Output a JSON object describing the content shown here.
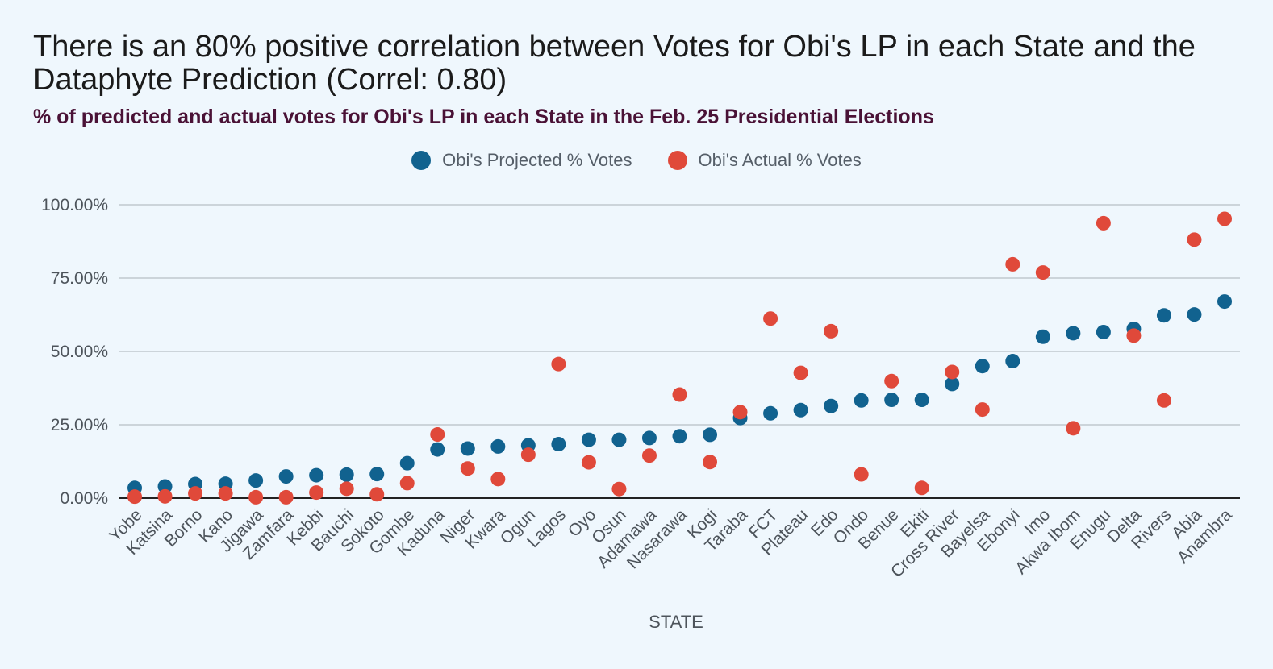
{
  "header": {
    "title": "There is an 80% positive correlation between Votes for Obi's LP in each State and the Dataphyte Prediction (Correl: 0.80)",
    "subtitle": "% of predicted and actual votes for Obi's LP in each State in the Feb. 25 Presidential Elections"
  },
  "colors": {
    "background": "#eff7fd",
    "projected": "#11628f",
    "actual": "#e0493a",
    "gridline": "#b8bfc6",
    "baseline": "#222222"
  },
  "chart_data": {
    "type": "scatter",
    "title": "There is an 80% positive correlation between Votes for Obi's LP in each State and the Dataphyte Prediction (Correl: 0.80)",
    "subtitle": "% of predicted and actual votes for Obi's LP in each State in the Feb. 25 Presidential Elections",
    "xlabel": "STATE",
    "ylabel": "",
    "ylim": [
      0,
      100
    ],
    "yticks": [
      "0.00%",
      "25.00%",
      "50.00%",
      "75.00%",
      "100.00%"
    ],
    "grid": true,
    "legend_position": "top-center",
    "categories": [
      "Yobe",
      "Katsina",
      "Borno",
      "Kano",
      "Jigawa",
      "Zamfara",
      "Kebbi",
      "Bauchi",
      "Sokoto",
      "Gombe",
      "Kaduna",
      "Niger",
      "Kwara",
      "Ogun",
      "Lagos",
      "Oyo",
      "Osun",
      "Adamawa",
      "Nasarawa",
      "Kogi",
      "Taraba",
      "FCT",
      "Plateau",
      "Edo",
      "Ondo",
      "Benue",
      "Ekiti",
      "Cross River",
      "Bayelsa",
      "Ebonyi",
      "Imo",
      "Akwa Ibom",
      "Enugu",
      "Delta",
      "Rivers",
      "Abia",
      "Anambra"
    ],
    "series": [
      {
        "name": "Obi's Projected % Votes",
        "color": "#11628f",
        "values": [
          3.5,
          4.0,
          4.8,
          4.9,
          6.0,
          7.4,
          7.8,
          8.0,
          8.2,
          11.9,
          16.6,
          16.9,
          17.6,
          18.0,
          18.4,
          19.9,
          19.9,
          20.5,
          21.1,
          21.6,
          27.3,
          28.9,
          30.0,
          31.4,
          33.3,
          33.5,
          33.5,
          38.9,
          45.0,
          46.7,
          55.0,
          56.2,
          56.6,
          57.7,
          62.3,
          62.6,
          67.0
        ]
      },
      {
        "name": "Obi's Actual % Votes",
        "color": "#e0493a",
        "values": [
          0.5,
          0.6,
          1.6,
          1.6,
          0.3,
          0.3,
          1.9,
          3.2,
          1.3,
          5.1,
          21.7,
          10.1,
          6.5,
          14.8,
          45.7,
          12.2,
          3.1,
          14.5,
          35.3,
          12.3,
          29.3,
          61.2,
          42.7,
          56.9,
          8.1,
          39.9,
          3.5,
          43.0,
          30.2,
          79.7,
          76.9,
          23.8,
          93.7,
          55.4,
          33.3,
          88.1,
          95.2
        ]
      }
    ]
  }
}
